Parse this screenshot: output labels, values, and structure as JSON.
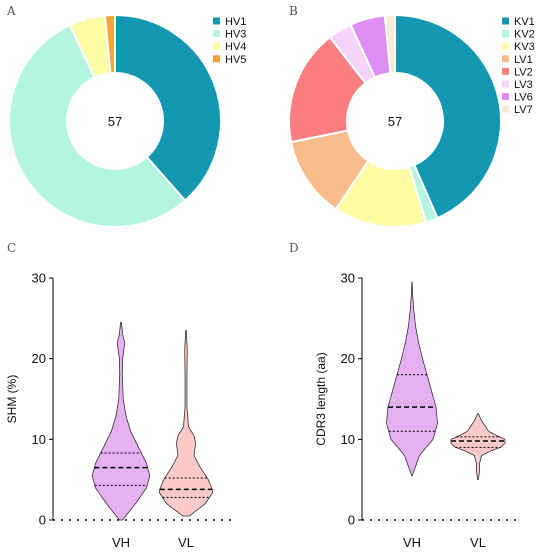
{
  "chart_data": [
    {
      "panel": "A",
      "type": "pie",
      "center_label": "57",
      "colors": [
        "#1497b0",
        "#b3f5e0",
        "#fdfda6",
        "#f7a13a"
      ],
      "slices": [
        {
          "label": "HV1",
          "value": 38.5
        },
        {
          "label": "HV3",
          "value": 54.5
        },
        {
          "label": "HV4",
          "value": 5.5
        },
        {
          "label": "HV5",
          "value": 1.5
        }
      ]
    },
    {
      "panel": "B",
      "type": "pie",
      "center_label": "57",
      "colors": [
        "#1497b0",
        "#b3f5e0",
        "#fdfda6",
        "#fbbc8c",
        "#fb7f7f",
        "#f4d4f8",
        "#de8ef4",
        "#f5eed6"
      ],
      "slices": [
        {
          "label": "KV1",
          "value": 43.0
        },
        {
          "label": "KV2",
          "value": 1.8
        },
        {
          "label": "KV3",
          "value": 14.0
        },
        {
          "label": "LV1",
          "value": 12.3
        },
        {
          "label": "LV2",
          "value": 17.5
        },
        {
          "label": "LV3",
          "value": 3.6
        },
        {
          "label": "LV6",
          "value": 5.3
        },
        {
          "label": "LV7",
          "value": 1.5
        }
      ]
    },
    {
      "panel": "C",
      "type": "violin",
      "ylabel": "SHM (%)",
      "ylim": [
        0,
        30
      ],
      "yticks": [
        0,
        10,
        20,
        30
      ],
      "categories": [
        "VH",
        "VL"
      ],
      "series": [
        {
          "category": "VH",
          "color": "#e6b0f2",
          "min": 0,
          "max": 24.5,
          "q1": 4.3,
          "median": 6.5,
          "q3": 8.3,
          "profile": [
            [
              0,
              0.05
            ],
            [
              2,
              0.45
            ],
            [
              4,
              0.8
            ],
            [
              5.5,
              0.9
            ],
            [
              7,
              0.8
            ],
            [
              9,
              0.55
            ],
            [
              11,
              0.3
            ],
            [
              13,
              0.15
            ],
            [
              15,
              0.07
            ],
            [
              18,
              0.04
            ],
            [
              20,
              0.05
            ],
            [
              22,
              0.12
            ],
            [
              22.8,
              0.06
            ],
            [
              24.5,
              0.01
            ]
          ]
        },
        {
          "category": "VL",
          "color": "#fbc9c9",
          "min": 0.5,
          "max": 23.5,
          "q1": 2.8,
          "median": 3.8,
          "q3": 5.2,
          "profile": [
            [
              0.5,
              0.1
            ],
            [
              2,
              0.6
            ],
            [
              3.5,
              0.85
            ],
            [
              5,
              0.7
            ],
            [
              6.5,
              0.45
            ],
            [
              8,
              0.25
            ],
            [
              9.5,
              0.3
            ],
            [
              10.5,
              0.25
            ],
            [
              11.5,
              0.08
            ],
            [
              14,
              0.03
            ],
            [
              18,
              0.03
            ],
            [
              21,
              0.04
            ],
            [
              23.5,
              0.01
            ]
          ]
        }
      ]
    },
    {
      "panel": "D",
      "type": "violin",
      "ylabel": "CDR3 length (aa)",
      "ylim": [
        0,
        30
      ],
      "yticks": [
        0,
        10,
        20,
        30
      ],
      "categories": [
        "VH",
        "VL"
      ],
      "series": [
        {
          "category": "VH",
          "color": "#e6b0f2",
          "min": 5.5,
          "max": 29.5,
          "q1": 11,
          "median": 14,
          "q3": 18,
          "profile": [
            [
              5.5,
              0.01
            ],
            [
              8,
              0.25
            ],
            [
              10,
              0.7
            ],
            [
              12,
              0.85
            ],
            [
              14,
              0.8
            ],
            [
              16,
              0.65
            ],
            [
              18,
              0.5
            ],
            [
              20,
              0.35
            ],
            [
              22,
              0.22
            ],
            [
              24,
              0.12
            ],
            [
              26,
              0.06
            ],
            [
              28,
              0.02
            ],
            [
              29.5,
              0.005
            ]
          ]
        },
        {
          "category": "VL",
          "color": "#fbc9c9",
          "min": 5,
          "max": 13.2,
          "q1": 9,
          "median": 9.8,
          "q3": 10.3,
          "profile": [
            [
              5,
              0.01
            ],
            [
              6,
              0.05
            ],
            [
              7,
              0.05
            ],
            [
              8,
              0.12
            ],
            [
              8.6,
              0.45
            ],
            [
              9,
              0.75
            ],
            [
              9.5,
              0.9
            ],
            [
              10,
              0.9
            ],
            [
              10.5,
              0.6
            ],
            [
              11,
              0.35
            ],
            [
              11.6,
              0.25
            ],
            [
              12.3,
              0.12
            ],
            [
              13.2,
              0.01
            ]
          ]
        }
      ]
    }
  ]
}
